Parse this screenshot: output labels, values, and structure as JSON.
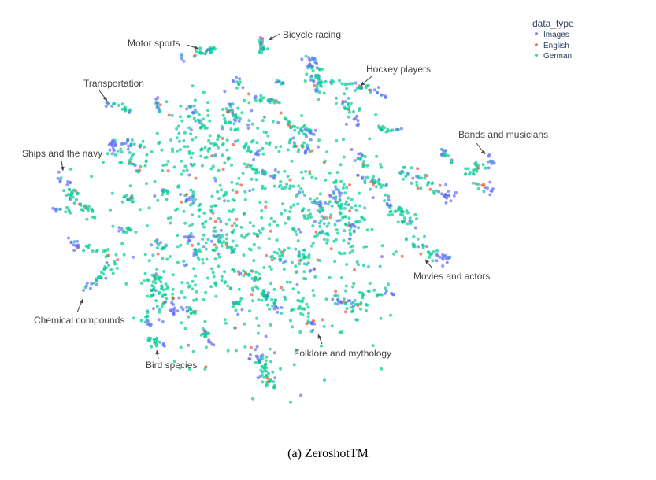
{
  "caption": "(a) ZeroshotTM",
  "chart_data": {
    "type": "scatter",
    "title": "",
    "xlabel": "",
    "ylabel": "",
    "grid": false,
    "legend": {
      "title": "data_type",
      "placement": "top-right",
      "entries": [
        "Images",
        "English",
        "German"
      ]
    },
    "series": [
      {
        "name": "Images",
        "color": "#636efa"
      },
      {
        "name": "English",
        "color": "#ef553b"
      },
      {
        "name": "German",
        "color": "#00cc96"
      }
    ],
    "annotations": [
      "Motor sports",
      "Bicycle racing",
      "Hockey players",
      "Transportation",
      "Bands and musicians",
      "Ships and the navy",
      "Movies and actors",
      "Chemical compounds",
      "Folklore and mythology",
      "Bird species"
    ]
  }
}
